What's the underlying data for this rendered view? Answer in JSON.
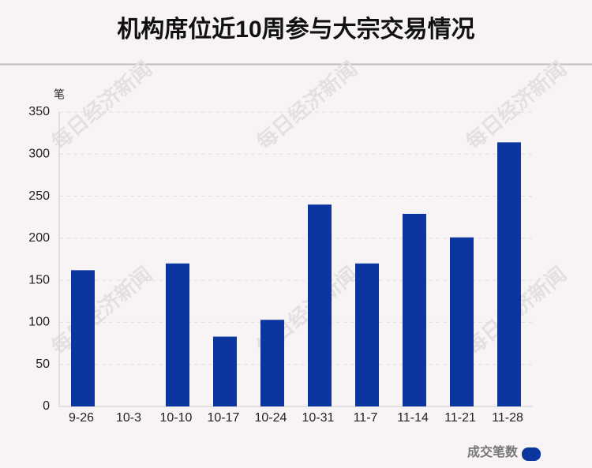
{
  "chart_data": {
    "type": "bar",
    "title": "机构席位近10周参与大宗交易情况",
    "y_label": "笔",
    "categories": [
      "9-26",
      "10-3",
      "10-10",
      "10-17",
      "10-24",
      "10-31",
      "11-7",
      "11-14",
      "11-21",
      "11-28"
    ],
    "series": [
      {
        "name": "成交笔数",
        "color": "#0d35a0",
        "values": [
          162,
          0,
          170,
          83,
          103,
          240,
          170,
          229,
          201,
          314
        ]
      }
    ],
    "ylim": [
      0,
      350
    ],
    "yticks": [
      0,
      50,
      100,
      150,
      200,
      250,
      300,
      350
    ],
    "grid": true,
    "legend": "bottom-right",
    "watermark": "每日经济新闻"
  }
}
